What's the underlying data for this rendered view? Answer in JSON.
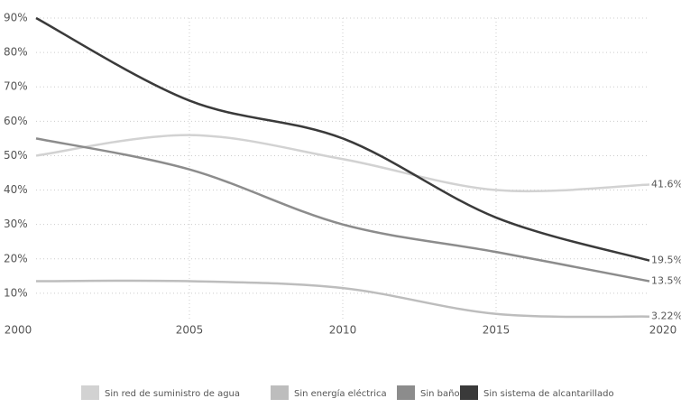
{
  "chart_data": {
    "type": "line",
    "x": [
      2000,
      2005,
      2010,
      2015,
      2020
    ],
    "xlim": [
      2000,
      2020
    ],
    "xticks": [
      2000,
      2005,
      2010,
      2015,
      2020
    ],
    "ylim": [
      0,
      90
    ],
    "yticks": [
      {
        "value": 10,
        "label": "10%"
      },
      {
        "value": 20,
        "label": "20%"
      },
      {
        "value": 30,
        "label": "30%"
      },
      {
        "value": 40,
        "label": "40%"
      },
      {
        "value": 50,
        "label": "50%"
      },
      {
        "value": 60,
        "label": "60%"
      },
      {
        "value": 70,
        "label": "70%"
      },
      {
        "value": 80,
        "label": "80%"
      },
      {
        "value": 90,
        "label": "90%"
      }
    ],
    "grid": true,
    "legend": "bottom",
    "series": [
      {
        "name": "Sin red de suministro de agua",
        "color": "#d2d2d2",
        "values": [
          50,
          56,
          49,
          40,
          41.6
        ],
        "value_labels": [
          null,
          null,
          null,
          null,
          "41.6%"
        ]
      },
      {
        "name": "Sin energía eléctrica",
        "color": "#bdbdbd",
        "values": [
          13.5,
          13.5,
          11.5,
          4,
          3.22
        ],
        "value_labels": [
          null,
          null,
          null,
          null,
          "3.22%"
        ]
      },
      {
        "name": "Sin baño",
        "color": "#8c8c8c",
        "values": [
          55,
          46,
          30,
          22,
          13.5
        ],
        "value_labels": [
          null,
          null,
          null,
          null,
          "13.5%"
        ]
      },
      {
        "name": "Sin sistema de alcantarillado",
        "color": "#3a3a3a",
        "values": [
          90,
          66,
          55,
          32,
          19.5
        ],
        "value_labels": [
          null,
          null,
          null,
          null,
          "19.5%"
        ]
      }
    ]
  }
}
